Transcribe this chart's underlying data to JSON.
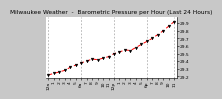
{
  "title": "Milwaukee Weather  -  Barometric Pressure per Hour (Last 24 Hours)",
  "bg_color": "#c8c8c8",
  "plot_bg": "#ffffff",
  "left_bg": "#808080",
  "line_color": "#ff0000",
  "marker_color": "#000000",
  "grid_color": "#888888",
  "hours": [
    0,
    1,
    2,
    3,
    4,
    5,
    6,
    7,
    8,
    9,
    10,
    11,
    12,
    13,
    14,
    15,
    16,
    17,
    18,
    19,
    20,
    21,
    22,
    23
  ],
  "pressure": [
    29.22,
    29.24,
    29.26,
    29.28,
    29.32,
    29.35,
    29.38,
    29.4,
    29.43,
    29.42,
    29.44,
    29.46,
    29.5,
    29.52,
    29.55,
    29.54,
    29.58,
    29.62,
    29.66,
    29.7,
    29.75,
    29.8,
    29.86,
    29.92
  ],
  "ylim": [
    29.18,
    29.98
  ],
  "yticks": [
    29.2,
    29.3,
    29.4,
    29.5,
    29.6,
    29.7,
    29.8,
    29.9
  ],
  "ytick_labels": [
    "29.2",
    "29.3",
    "29.4",
    "29.5",
    "29.6",
    "29.7",
    "29.8",
    "29.9"
  ],
  "xtick_labels": [
    "12a",
    "1",
    "2",
    "3",
    "4",
    "5",
    "6a",
    "7",
    "8",
    "9",
    "10",
    "11",
    "12p",
    "1",
    "2",
    "3",
    "4",
    "5",
    "6p",
    "7",
    "8",
    "9",
    "10",
    "11"
  ],
  "title_fontsize": 4.2,
  "tick_fontsize": 3.2,
  "gridline_positions": [
    0,
    6,
    12,
    18,
    23
  ]
}
